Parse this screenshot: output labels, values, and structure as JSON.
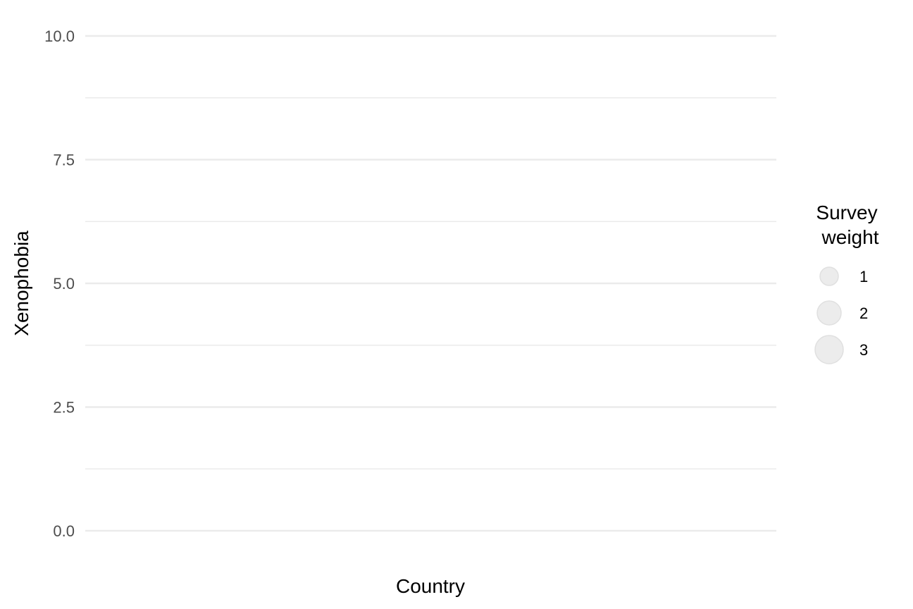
{
  "chart_data": {
    "type": "scatter",
    "title": "",
    "xlabel": "Country",
    "ylabel": "Xenophobia",
    "ylim": [
      0,
      10
    ],
    "y_ticks": [
      {
        "value": 0,
        "label": "0.0"
      },
      {
        "value": 2.5,
        "label": "2.5"
      },
      {
        "value": 5,
        "label": "5.0"
      },
      {
        "value": 7.5,
        "label": "7.5"
      },
      {
        "value": 10,
        "label": "10.0"
      }
    ],
    "y_minor_ticks": [
      1.25,
      3.75,
      6.25,
      8.75
    ],
    "x_categories": [],
    "points": [],
    "grid": true,
    "legend": {
      "title_lines": [
        "Survey",
        "weight"
      ],
      "placement": "right",
      "entries": [
        {
          "value": 1,
          "label": "1"
        },
        {
          "value": 2,
          "label": "2"
        },
        {
          "value": 3,
          "label": "3"
        }
      ]
    },
    "colors": {
      "major_grid": "#ebebeb",
      "minor_grid": "#ebebeb",
      "legend_point_fill": "#ececec",
      "legend_point_stroke": "#e0e0e0"
    }
  }
}
